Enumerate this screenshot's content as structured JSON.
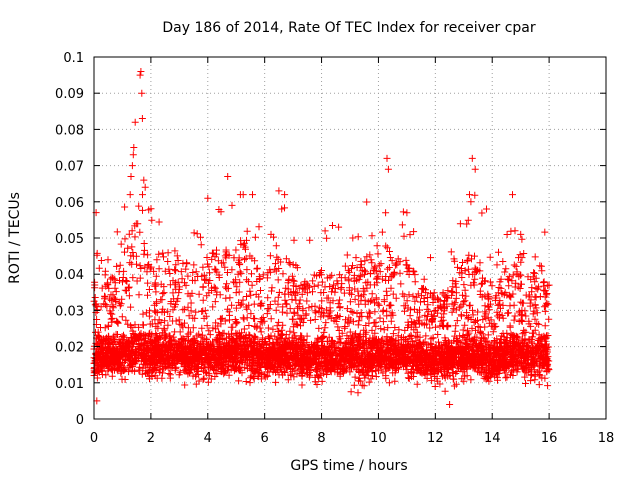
{
  "chart_data": {
    "type": "scatter",
    "title": "Day 186 of 2014, Rate Of TEC Index for receiver cpar",
    "xlabel": "GPS time / hours",
    "ylabel": "ROTI / TECUs",
    "xlim": [
      0,
      18
    ],
    "ylim": [
      0,
      0.1
    ],
    "x_ticks": [
      0,
      2,
      4,
      6,
      8,
      10,
      12,
      14,
      16,
      18
    ],
    "y_ticks": [
      0,
      0.01,
      0.02,
      0.03,
      0.04,
      0.05,
      0.06,
      0.07,
      0.08,
      0.09,
      0.1
    ],
    "x_tick_labels": [
      "0",
      "2",
      "4",
      "6",
      "8",
      "10",
      "12",
      "14",
      "16",
      "18"
    ],
    "y_tick_labels": [
      "0",
      "0.01",
      "0.02",
      "0.03",
      "0.04",
      "0.05",
      "0.06",
      "0.07",
      "0.08",
      "0.09",
      "0.1"
    ],
    "grid": true,
    "marker": "+",
    "marker_color": "#ff0000",
    "data_range_x": [
      0,
      16
    ],
    "typical_band_y": [
      0.008,
      0.025
    ],
    "series": [
      {
        "name": "ROTI",
        "notable_points": [
          {
            "x": 1.65,
            "y": 0.096
          },
          {
            "x": 1.62,
            "y": 0.095
          },
          {
            "x": 1.68,
            "y": 0.09
          },
          {
            "x": 1.7,
            "y": 0.083
          },
          {
            "x": 1.45,
            "y": 0.082
          },
          {
            "x": 1.4,
            "y": 0.075
          },
          {
            "x": 1.38,
            "y": 0.073
          },
          {
            "x": 1.35,
            "y": 0.07
          },
          {
            "x": 1.3,
            "y": 0.067
          },
          {
            "x": 1.75,
            "y": 0.066
          },
          {
            "x": 1.8,
            "y": 0.064
          },
          {
            "x": 4.7,
            "y": 0.067
          },
          {
            "x": 4.0,
            "y": 0.061
          },
          {
            "x": 4.85,
            "y": 0.059
          },
          {
            "x": 6.5,
            "y": 0.063
          },
          {
            "x": 6.7,
            "y": 0.062
          },
          {
            "x": 6.6,
            "y": 0.058
          },
          {
            "x": 10.3,
            "y": 0.072
          },
          {
            "x": 10.35,
            "y": 0.069
          },
          {
            "x": 10.25,
            "y": 0.057
          },
          {
            "x": 13.3,
            "y": 0.072
          },
          {
            "x": 13.4,
            "y": 0.069
          },
          {
            "x": 13.2,
            "y": 0.062
          },
          {
            "x": 13.25,
            "y": 0.06
          },
          {
            "x": 13.8,
            "y": 0.058
          },
          {
            "x": 14.8,
            "y": 0.052
          },
          {
            "x": 15.0,
            "y": 0.051
          },
          {
            "x": 11.0,
            "y": 0.057
          },
          {
            "x": 9.1,
            "y": 0.05
          },
          {
            "x": 8.6,
            "y": 0.053
          },
          {
            "x": 16.0,
            "y": 0.037
          },
          {
            "x": 12.5,
            "y": 0.004
          },
          {
            "x": 0.1,
            "y": 0.005
          }
        ]
      }
    ]
  }
}
